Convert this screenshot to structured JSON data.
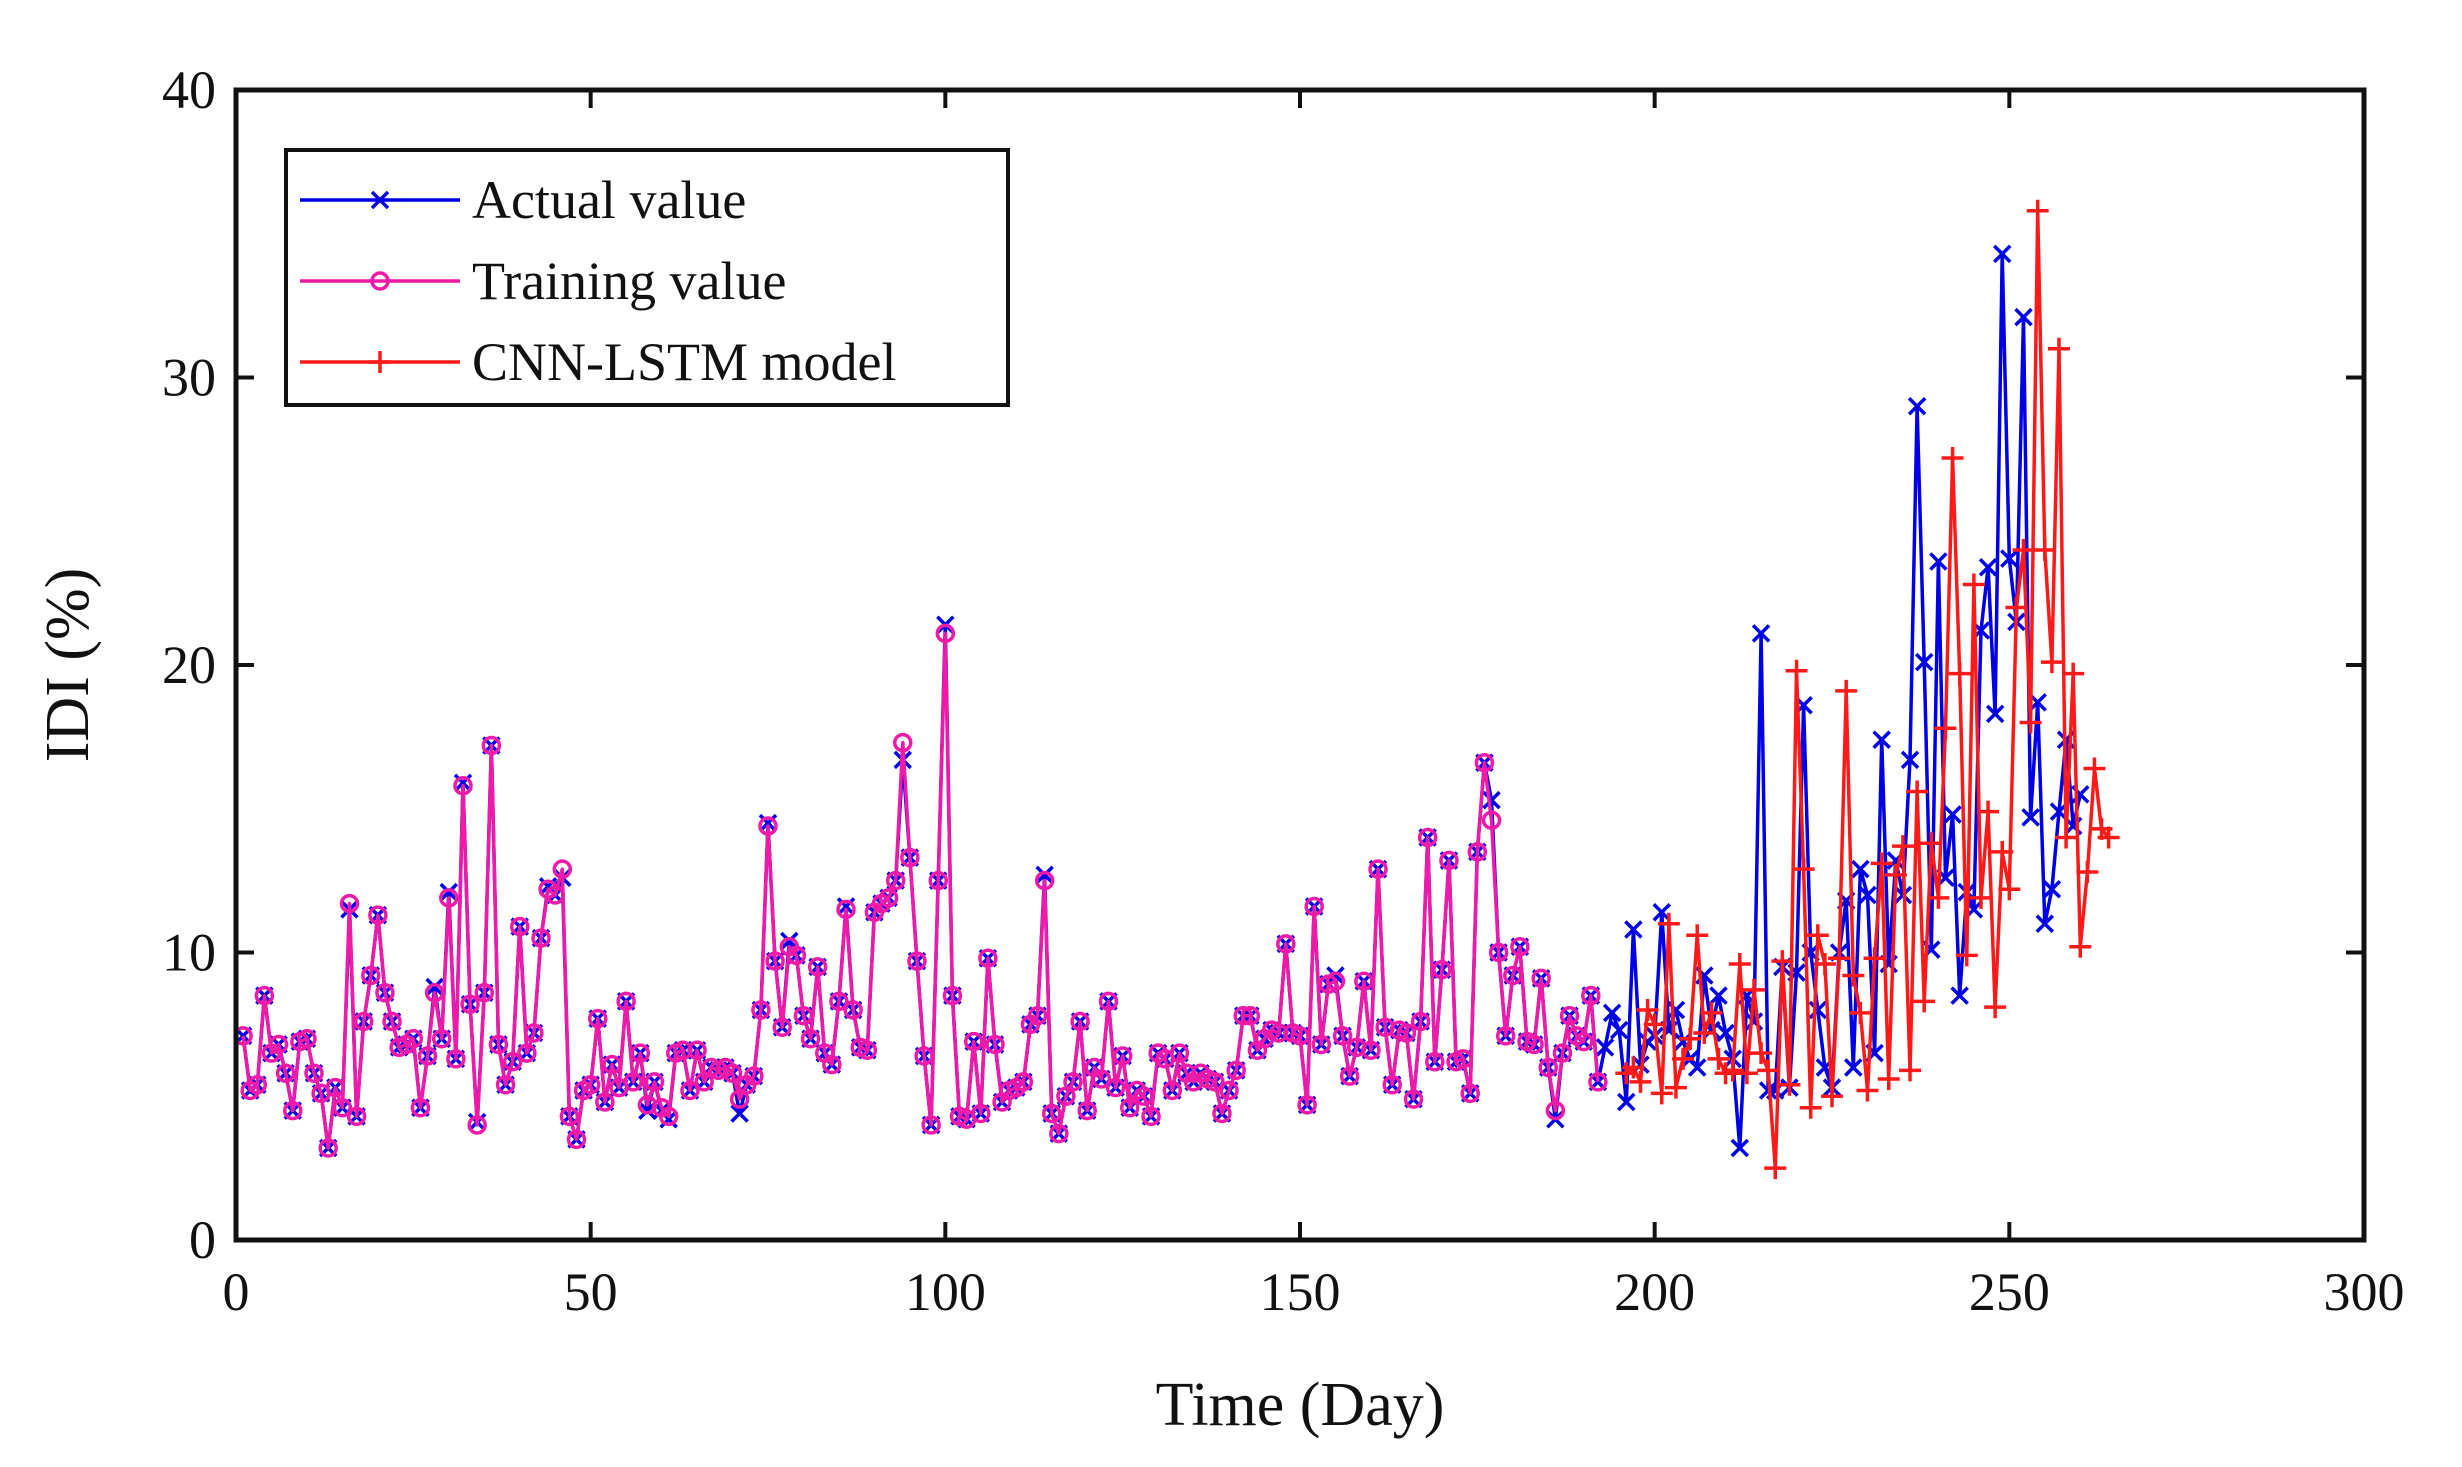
{
  "chart_data": {
    "type": "line",
    "title": "",
    "xlabel": "Time (Day)",
    "ylabel": "IDI (%)",
    "xlim": [
      0,
      300
    ],
    "ylim": [
      0,
      40
    ],
    "xticks": [
      0,
      50,
      100,
      150,
      200,
      250,
      300
    ],
    "yticks": [
      0,
      10,
      20,
      30,
      40
    ],
    "grid": false,
    "legend_position": "top-left",
    "series": [
      {
        "name": "Actual value",
        "color": "#0000e6",
        "marker": "x",
        "x_start": 1,
        "values": [
          7.1,
          5.2,
          5.4,
          8.5,
          6.5,
          6.8,
          5.8,
          4.5,
          6.9,
          7.0,
          5.8,
          5.1,
          3.2,
          5.3,
          4.6,
          11.5,
          4.3,
          7.6,
          9.2,
          11.3,
          8.6,
          7.6,
          6.7,
          6.8,
          7.0,
          4.6,
          6.4,
          8.8,
          7.0,
          12.1,
          6.3,
          15.9,
          8.2,
          4.1,
          8.6,
          17.2,
          6.8,
          5.4,
          6.2,
          10.9,
          6.5,
          7.2,
          10.5,
          12.3,
          12.0,
          12.6,
          4.3,
          3.5,
          5.2,
          5.4,
          7.7,
          4.8,
          6.1,
          5.3,
          8.3,
          5.5,
          6.5,
          4.5,
          5.5,
          4.5,
          4.2,
          6.5,
          6.6,
          5.2,
          6.6,
          5.5,
          6.0,
          5.9,
          6.0,
          5.8,
          4.4,
          5.4,
          5.7,
          8.0,
          14.5,
          9.7,
          7.4,
          10.4,
          9.9,
          7.8,
          7.0,
          9.5,
          6.5,
          6.1,
          8.3,
          11.6,
          8.0,
          6.7,
          6.6,
          11.4,
          11.7,
          11.9,
          12.5,
          16.7,
          13.3,
          9.7,
          6.4,
          4.0,
          12.5,
          21.4,
          8.5,
          4.3,
          4.2,
          6.9,
          4.4,
          9.8,
          6.8,
          4.8,
          5.2,
          5.3,
          5.5,
          7.5,
          7.8,
          12.7,
          4.4,
          3.7,
          5.0,
          5.5,
          7.6,
          4.5,
          6.0,
          5.6,
          8.3,
          5.3,
          6.4,
          4.6,
          5.2,
          5.0,
          4.3,
          6.5,
          6.3,
          5.2,
          6.5,
          5.8,
          5.5,
          5.8,
          5.6,
          5.5,
          4.4,
          5.2,
          5.9,
          7.8,
          7.8,
          6.6,
          7.0,
          7.3,
          7.2,
          10.3,
          7.2,
          7.1,
          4.7,
          11.6,
          6.8,
          8.9,
          9.2,
          7.1,
          5.7,
          6.7,
          9.0,
          6.6,
          12.9,
          7.4,
          5.4,
          7.3,
          7.2,
          4.9,
          7.6,
          14.0,
          6.2,
          9.4,
          13.2,
          6.2,
          6.3,
          5.1,
          13.5,
          16.6,
          15.3,
          10.0,
          7.1,
          9.2,
          10.2,
          6.9,
          6.8,
          9.1,
          6.0,
          4.2,
          6.5,
          7.8,
          7.1,
          6.9,
          8.5,
          5.5,
          6.7,
          7.9,
          7.3,
          4.8,
          10.8,
          6.1,
          6.9,
          7.1,
          11.4,
          7.3,
          8.0,
          6.9,
          6.3,
          6.0,
          9.2,
          7.3,
          8.5,
          7.2,
          6.3,
          3.2,
          8.5,
          7.6,
          21.1,
          5.2,
          5.2,
          9.5,
          5.3,
          9.3,
          18.6,
          10.0,
          8.0,
          6.0,
          5.3,
          10.0,
          11.8,
          6.0,
          12.9,
          12.0,
          6.5,
          17.4,
          9.6,
          13.2,
          12.0,
          16.7,
          29.0,
          20.1,
          10.1,
          23.6,
          12.6,
          14.8,
          8.5,
          12.1,
          11.5,
          21.2,
          23.4,
          18.3,
          34.3,
          23.7,
          21.5,
          32.1,
          14.7,
          18.7,
          11.0,
          12.2,
          14.9,
          17.4,
          14.4,
          15.5
        ]
      },
      {
        "name": "Training value",
        "color": "#f01aa8",
        "marker": "o",
        "x_start": 1,
        "values": [
          7.1,
          5.2,
          5.4,
          8.5,
          6.5,
          6.8,
          5.8,
          4.5,
          6.9,
          7.0,
          5.8,
          5.1,
          3.2,
          5.3,
          4.6,
          11.7,
          4.3,
          7.6,
          9.2,
          11.3,
          8.6,
          7.6,
          6.7,
          6.8,
          7.0,
          4.6,
          6.4,
          8.6,
          7.0,
          11.9,
          6.3,
          15.8,
          8.2,
          4.0,
          8.6,
          17.2,
          6.8,
          5.4,
          6.2,
          10.9,
          6.5,
          7.2,
          10.5,
          12.2,
          12.0,
          12.9,
          4.3,
          3.5,
          5.2,
          5.4,
          7.7,
          4.8,
          6.1,
          5.3,
          8.3,
          5.5,
          6.5,
          4.7,
          5.5,
          4.6,
          4.3,
          6.5,
          6.6,
          5.2,
          6.6,
          5.5,
          6.0,
          5.9,
          6.0,
          5.8,
          4.9,
          5.4,
          5.7,
          8.0,
          14.4,
          9.7,
          7.4,
          10.2,
          9.9,
          7.8,
          7.0,
          9.5,
          6.5,
          6.1,
          8.3,
          11.5,
          8.0,
          6.7,
          6.6,
          11.4,
          11.7,
          11.9,
          12.5,
          17.3,
          13.3,
          9.7,
          6.4,
          4.0,
          12.5,
          21.1,
          8.5,
          4.3,
          4.2,
          6.9,
          4.4,
          9.8,
          6.8,
          4.8,
          5.2,
          5.3,
          5.5,
          7.5,
          7.8,
          12.5,
          4.4,
          3.7,
          5.0,
          5.5,
          7.6,
          4.5,
          6.0,
          5.6,
          8.3,
          5.3,
          6.4,
          4.6,
          5.2,
          5.0,
          4.3,
          6.5,
          6.3,
          5.2,
          6.5,
          5.8,
          5.5,
          5.8,
          5.6,
          5.5,
          4.4,
          5.2,
          5.9,
          7.8,
          7.8,
          6.6,
          7.0,
          7.3,
          7.2,
          10.3,
          7.2,
          7.1,
          4.7,
          11.6,
          6.8,
          8.9,
          9.0,
          7.1,
          5.7,
          6.7,
          9.0,
          6.6,
          12.9,
          7.4,
          5.4,
          7.3,
          7.2,
          4.9,
          7.6,
          14.0,
          6.2,
          9.4,
          13.2,
          6.2,
          6.3,
          5.1,
          13.5,
          16.6,
          14.6,
          10.0,
          7.1,
          9.2,
          10.2,
          6.9,
          6.8,
          9.1,
          6.0,
          4.5,
          6.5,
          7.8,
          7.1,
          6.9,
          8.5,
          5.5
        ]
      },
      {
        "name": "CNN-LSTM model",
        "color": "#ff1a1a",
        "marker": "+",
        "x_start": 196,
        "values": [
          5.8,
          6.0,
          5.5,
          8.0,
          7.5,
          5.1,
          11.0,
          5.3,
          6.3,
          7.0,
          10.6,
          7.2,
          7.9,
          6.3,
          5.8,
          5.9,
          9.6,
          5.8,
          8.7,
          6.5,
          5.9,
          2.5,
          9.7,
          5.4,
          19.8,
          12.9,
          4.6,
          10.6,
          9.6,
          5.0,
          9.8,
          19.1,
          9.2,
          7.9,
          5.2,
          9.8,
          13.1,
          5.6,
          12.7,
          13.7,
          5.9,
          15.6,
          8.3,
          13.8,
          11.9,
          17.8,
          27.2,
          19.7,
          9.9,
          22.8,
          11.9,
          14.9,
          8.1,
          13.5,
          12.2,
          22.0,
          24.0,
          18.0,
          35.8,
          24.0,
          20.1,
          31.0,
          14.0,
          19.7,
          10.2,
          12.8,
          16.4,
          14.3,
          14.0
        ]
      }
    ]
  }
}
